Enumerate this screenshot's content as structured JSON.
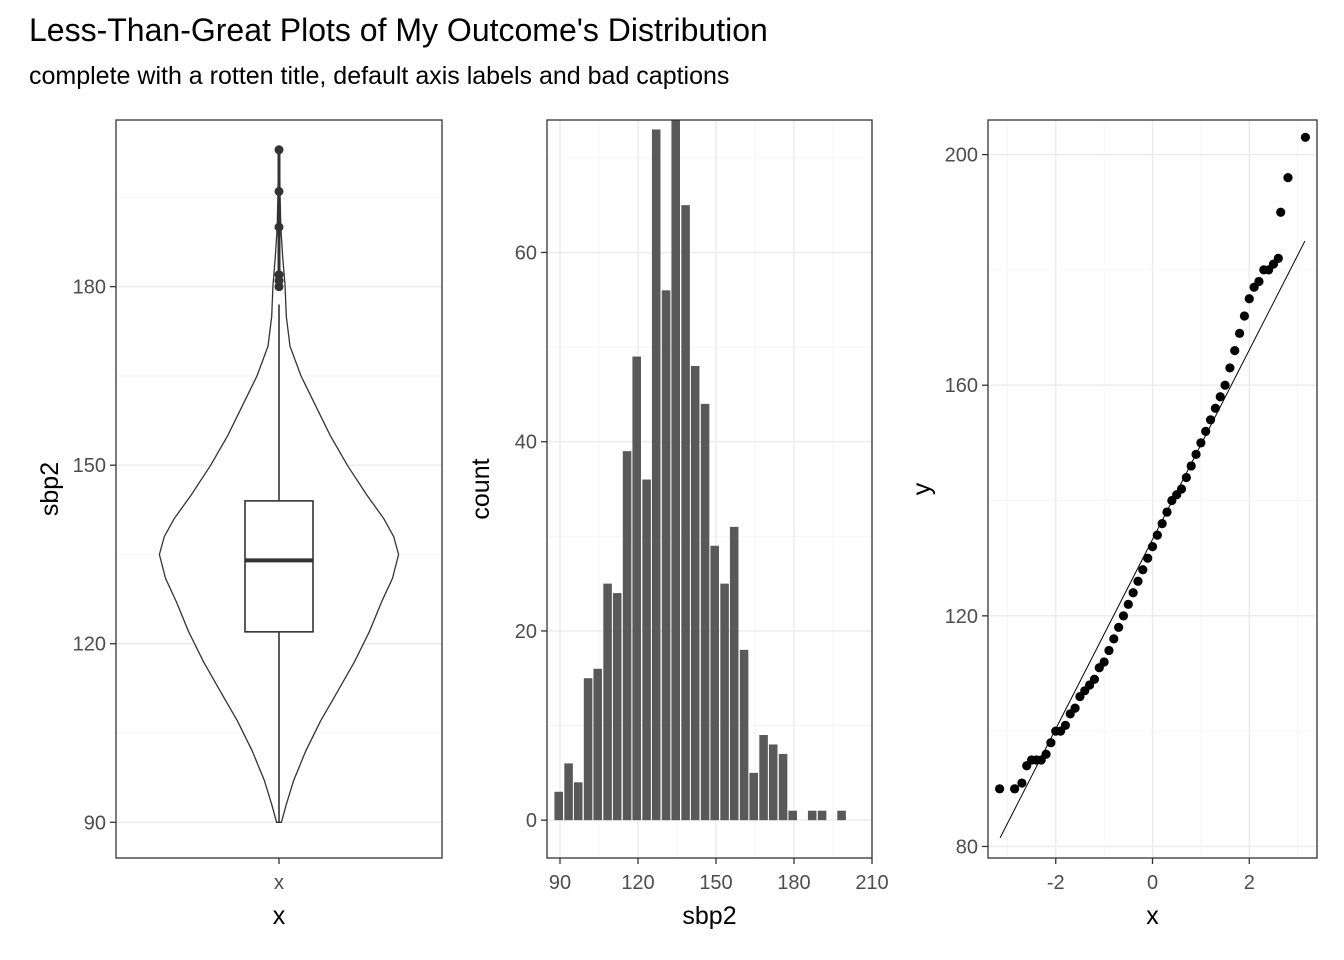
{
  "title": "Less-Than-Great Plots of My Outcome's Distribution",
  "subtitle": "complete with a rotten title, default axis labels and bad captions",
  "chart_data": [
    {
      "type": "violin+boxplot",
      "xlabel": "x",
      "ylabel": "sbp2",
      "x_ticks": [
        "x"
      ],
      "ylim": [
        84,
        208
      ],
      "y_ticks": [
        90,
        120,
        150,
        180
      ],
      "grid": true,
      "box": {
        "min": 90,
        "q1": 122,
        "median": 134,
        "q3": 144,
        "whisker_high": 177
      },
      "outliers": [
        180,
        181,
        182,
        190,
        196,
        203
      ],
      "violin_profile": [
        [
          90,
          0.02
        ],
        [
          93,
          0.06
        ],
        [
          97,
          0.12
        ],
        [
          102,
          0.22
        ],
        [
          107,
          0.34
        ],
        [
          112,
          0.48
        ],
        [
          117,
          0.62
        ],
        [
          122,
          0.74
        ],
        [
          127,
          0.84
        ],
        [
          131,
          0.93
        ],
        [
          135,
          0.98
        ],
        [
          138,
          0.94
        ],
        [
          141,
          0.86
        ],
        [
          145,
          0.72
        ],
        [
          150,
          0.56
        ],
        [
          155,
          0.42
        ],
        [
          160,
          0.3
        ],
        [
          165,
          0.18
        ],
        [
          170,
          0.09
        ],
        [
          175,
          0.06
        ],
        [
          180,
          0.05
        ],
        [
          185,
          0.03
        ],
        [
          190,
          0.015
        ],
        [
          196,
          0.008
        ],
        [
          203,
          0.004
        ]
      ]
    },
    {
      "type": "bar",
      "xlabel": "sbp2",
      "ylabel": "count",
      "xlim": [
        85,
        210
      ],
      "ylim": [
        -4,
        74
      ],
      "x_ticks": [
        90,
        120,
        150,
        180,
        210
      ],
      "y_ticks": [
        0,
        20,
        40,
        60
      ],
      "grid": true,
      "bin_width": 3.75,
      "bin_centers": [
        89.5,
        93.3,
        97,
        100.8,
        104.5,
        108.3,
        112,
        115.8,
        119.5,
        123.3,
        127,
        130.8,
        134.5,
        138.3,
        142,
        145.8,
        149.5,
        153.3,
        157,
        160.8,
        164.5,
        168.3,
        172,
        175.8,
        179.5,
        183.3,
        187,
        190.8,
        194.5,
        198.3,
        202
      ],
      "counts": [
        3,
        6,
        4,
        15,
        16,
        25,
        24,
        39,
        49,
        36,
        73,
        56,
        74,
        65,
        48,
        44,
        29,
        25,
        31,
        18,
        5,
        9,
        8,
        7,
        1,
        0,
        1,
        1,
        0,
        1,
        0
      ]
    },
    {
      "type": "scatter",
      "subtype": "qq-plot",
      "xlabel": "x",
      "ylabel": "y",
      "xlim": [
        -3.4,
        3.4
      ],
      "ylim": [
        78,
        206
      ],
      "x_ticks": [
        -2,
        0,
        2
      ],
      "y_ticks": [
        80,
        120,
        160,
        200
      ],
      "grid": true,
      "reference_line": [
        [
          -3.15,
          81.5
        ],
        [
          3.15,
          185
        ]
      ],
      "points": [
        [
          -3.16,
          90
        ],
        [
          -2.85,
          90
        ],
        [
          -2.7,
          91
        ],
        [
          -2.6,
          94
        ],
        [
          -2.5,
          95
        ],
        [
          -2.4,
          95
        ],
        [
          -2.3,
          95
        ],
        [
          -2.2,
          96
        ],
        [
          -2.1,
          98
        ],
        [
          -2.0,
          100
        ],
        [
          -1.9,
          100
        ],
        [
          -1.8,
          101
        ],
        [
          -1.7,
          103
        ],
        [
          -1.6,
          104
        ],
        [
          -1.5,
          106
        ],
        [
          -1.4,
          107
        ],
        [
          -1.3,
          108
        ],
        [
          -1.2,
          109
        ],
        [
          -1.1,
          111
        ],
        [
          -1.0,
          112
        ],
        [
          -0.9,
          114
        ],
        [
          -0.8,
          116
        ],
        [
          -0.7,
          118
        ],
        [
          -0.6,
          120
        ],
        [
          -0.5,
          122
        ],
        [
          -0.4,
          124
        ],
        [
          -0.3,
          126
        ],
        [
          -0.2,
          128
        ],
        [
          -0.1,
          130
        ],
        [
          0.0,
          132
        ],
        [
          0.1,
          134
        ],
        [
          0.2,
          136
        ],
        [
          0.3,
          138
        ],
        [
          0.4,
          140
        ],
        [
          0.5,
          141
        ],
        [
          0.6,
          142
        ],
        [
          0.7,
          144
        ],
        [
          0.8,
          146
        ],
        [
          0.9,
          148
        ],
        [
          1.0,
          150
        ],
        [
          1.1,
          152
        ],
        [
          1.2,
          154
        ],
        [
          1.3,
          156
        ],
        [
          1.4,
          158
        ],
        [
          1.5,
          160
        ],
        [
          1.6,
          163
        ],
        [
          1.7,
          166
        ],
        [
          1.8,
          169
        ],
        [
          1.9,
          172
        ],
        [
          2.0,
          175
        ],
        [
          2.1,
          177
        ],
        [
          2.2,
          178
        ],
        [
          2.3,
          180
        ],
        [
          2.4,
          180
        ],
        [
          2.5,
          181
        ],
        [
          2.6,
          182
        ],
        [
          2.65,
          190
        ],
        [
          2.8,
          196
        ],
        [
          3.16,
          203
        ]
      ]
    }
  ]
}
